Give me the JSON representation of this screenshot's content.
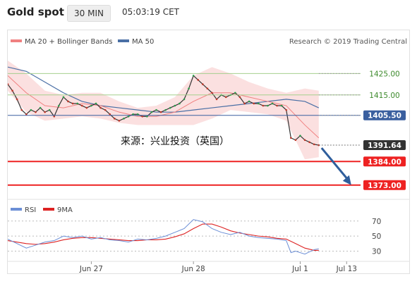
{
  "header": {
    "title": "Gold spot",
    "timeframe": "30 MIN",
    "time": "05:03:19 CET"
  },
  "colors": {
    "bollinger": "#f7c6c6",
    "ma20": "#f08080",
    "ma50": "#4a6fa5",
    "price": "#333333",
    "resistance": "#a6cf8e",
    "support": "#ee2222",
    "pivot": "#3a5f9f",
    "forecast_arrow": "#2f5e9c",
    "rsi": "#6b8ed6",
    "rsi_ma": "#dd2222"
  },
  "chart_data": [
    {
      "type": "line",
      "title": "",
      "legend": [
        {
          "name": "MA 20 + Bollinger Bands",
          "color": "#f08080"
        },
        {
          "name": "MA 50",
          "color": "#4a6fa5"
        }
      ],
      "credit": "Research © 2019 Trading Central",
      "annotation": "来源：兴业投资（英国）",
      "x_ticks": [
        {
          "label": "Jun 27",
          "x": 18
        },
        {
          "label": "Jun 28",
          "x": 40
        },
        {
          "label": "Jul 1",
          "x": 63
        },
        {
          "label": "Jul 13",
          "x": 73
        }
      ],
      "xlim": [
        0,
        76
      ],
      "ylim": [
        1368,
        1432
      ],
      "levels": [
        {
          "label": "1425.00",
          "value": 1425.0,
          "kind": "resistance"
        },
        {
          "label": "1415.00",
          "value": 1415.0,
          "kind": "resistance"
        },
        {
          "label": "1405.50",
          "value": 1405.5,
          "kind": "pivot"
        },
        {
          "label": "1391.64",
          "value": 1391.64,
          "kind": "current"
        },
        {
          "label": "1384.00",
          "value": 1384.0,
          "kind": "support"
        },
        {
          "label": "1373.00",
          "value": 1373.0,
          "kind": "support"
        }
      ],
      "forecast": {
        "from": [
          67,
          1391.6
        ],
        "to": [
          74,
          1373.0
        ]
      },
      "series": [
        {
          "name": "Price",
          "x": [
            0,
            1,
            2,
            3,
            4,
            5,
            6,
            7,
            8,
            9,
            10,
            11,
            12,
            13,
            14,
            15,
            16,
            17,
            18,
            19,
            20,
            21,
            22,
            23,
            24,
            25,
            26,
            27,
            28,
            29,
            30,
            31,
            32,
            33,
            34,
            35,
            36,
            37,
            38,
            39,
            40,
            41,
            42,
            43,
            44,
            45,
            46,
            47,
            48,
            49,
            50,
            51,
            52,
            53,
            54,
            55,
            56,
            57,
            58,
            59,
            60,
            61,
            62,
            63,
            64,
            65,
            66,
            67
          ],
          "y": [
            1420,
            1417,
            1413,
            1408,
            1406,
            1408,
            1407,
            1409,
            1407,
            1408,
            1405,
            1410,
            1414,
            1412,
            1411,
            1411,
            1410,
            1409,
            1410,
            1411,
            1409,
            1408,
            1406,
            1404,
            1403,
            1404,
            1405,
            1406,
            1406,
            1405,
            1405,
            1407,
            1408,
            1407,
            1408,
            1409,
            1410,
            1411,
            1413,
            1418,
            1424,
            1422,
            1420,
            1418,
            1416,
            1413,
            1415,
            1414,
            1415,
            1416,
            1414,
            1411,
            1412,
            1411,
            1411,
            1410,
            1410,
            1411,
            1410,
            1410,
            1408,
            1395,
            1394,
            1396,
            1394,
            1393,
            1392,
            1391.6
          ]
        },
        {
          "name": "MA 20",
          "x": [
            0,
            4,
            8,
            12,
            16,
            20,
            24,
            28,
            32,
            36,
            40,
            44,
            48,
            52,
            56,
            60,
            64,
            67
          ],
          "y": [
            1424,
            1416,
            1410,
            1409,
            1411,
            1410,
            1407,
            1405,
            1405,
            1407,
            1412,
            1416,
            1416,
            1414,
            1412,
            1410,
            1401,
            1395
          ]
        },
        {
          "name": "Bollinger upper",
          "x": [
            0,
            4,
            8,
            12,
            16,
            20,
            24,
            28,
            32,
            36,
            40,
            44,
            48,
            52,
            56,
            60,
            64,
            67
          ],
          "y": [
            1431,
            1425,
            1417,
            1415,
            1416,
            1416,
            1412,
            1409,
            1410,
            1414,
            1424,
            1428,
            1425,
            1421,
            1418,
            1416,
            1418,
            1417
          ]
        },
        {
          "name": "Bollinger lower",
          "x": [
            0,
            4,
            8,
            12,
            16,
            20,
            24,
            28,
            32,
            36,
            40,
            44,
            48,
            52,
            56,
            60,
            64,
            67
          ],
          "y": [
            1417,
            1407,
            1403,
            1404,
            1405,
            1404,
            1402,
            1401,
            1401,
            1401,
            1401,
            1404,
            1408,
            1407,
            1406,
            1403,
            1385,
            1386
          ]
        },
        {
          "name": "MA 50",
          "x": [
            0,
            4,
            8,
            12,
            16,
            20,
            24,
            28,
            32,
            36,
            40,
            44,
            48,
            52,
            56,
            60,
            64,
            67
          ],
          "y": [
            1428,
            1426,
            1421,
            1416,
            1412,
            1410,
            1409,
            1408,
            1407,
            1407,
            1408,
            1409,
            1410,
            1411,
            1412,
            1413,
            1412,
            1409
          ]
        }
      ]
    },
    {
      "type": "line",
      "title": "",
      "legend": [
        {
          "name": "RSI",
          "color": "#6b8ed6"
        },
        {
          "name": "9MA",
          "color": "#dd2222"
        }
      ],
      "ylim": [
        22,
        82
      ],
      "y_ticks": [
        {
          "label": "70",
          "value": 70
        },
        {
          "label": "50",
          "value": 50
        },
        {
          "label": "30",
          "value": 30
        }
      ],
      "series": [
        {
          "name": "RSI",
          "x": [
            0,
            2,
            4,
            6,
            8,
            10,
            12,
            14,
            16,
            18,
            20,
            22,
            24,
            26,
            28,
            30,
            32,
            34,
            36,
            38,
            40,
            42,
            44,
            46,
            48,
            50,
            52,
            54,
            56,
            58,
            60,
            61,
            62,
            64,
            66,
            67
          ],
          "y": [
            46,
            40,
            34,
            38,
            42,
            44,
            50,
            48,
            50,
            46,
            48,
            45,
            44,
            42,
            46,
            45,
            47,
            50,
            55,
            60,
            72,
            69,
            60,
            55,
            52,
            55,
            50,
            48,
            47,
            46,
            44,
            28,
            30,
            26,
            32,
            33
          ]
        },
        {
          "name": "9MA",
          "x": [
            0,
            2,
            4,
            6,
            8,
            10,
            12,
            14,
            16,
            18,
            20,
            22,
            24,
            26,
            28,
            30,
            32,
            34,
            36,
            38,
            40,
            42,
            44,
            46,
            48,
            50,
            52,
            54,
            56,
            58,
            60,
            62,
            64,
            66,
            67
          ],
          "y": [
            44,
            42,
            40,
            39,
            40,
            42,
            45,
            47,
            48,
            48,
            47,
            46,
            45,
            44,
            44,
            45,
            45,
            46,
            49,
            53,
            60,
            66,
            66,
            62,
            57,
            54,
            52,
            50,
            49,
            47,
            46,
            40,
            34,
            31,
            31
          ]
        }
      ]
    }
  ]
}
